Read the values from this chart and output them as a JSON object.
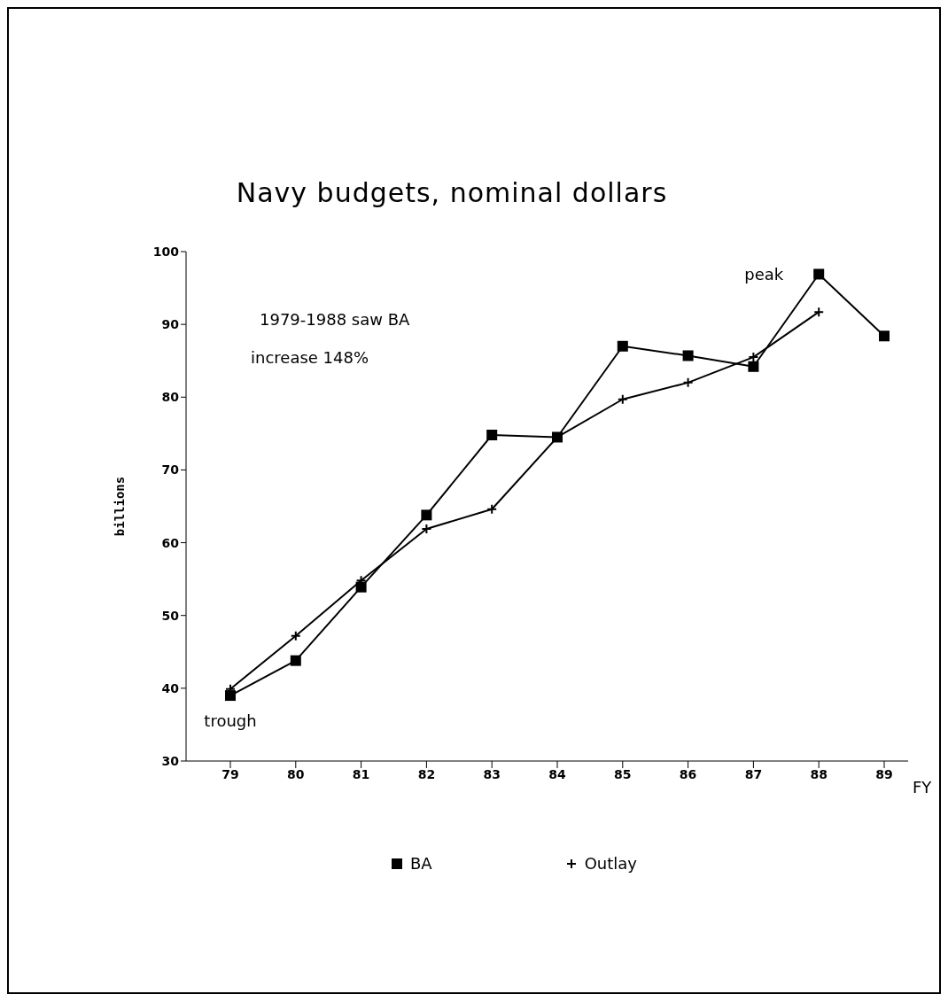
{
  "chart_data": {
    "type": "line",
    "title": "Navy budgets, nominal dollars",
    "xlabel": "FY",
    "ylabel": "billions",
    "categories": [
      "79",
      "80",
      "81",
      "82",
      "83",
      "84",
      "85",
      "86",
      "87",
      "88",
      "89"
    ],
    "series": [
      {
        "name": "BA",
        "color": "#000000",
        "marker": "square",
        "values": [
          39.0,
          43.8,
          53.9,
          63.8,
          74.8,
          74.5,
          87.0,
          85.7,
          84.2,
          96.9,
          88.4
        ]
      },
      {
        "name": "Outlay",
        "color": "#000000",
        "marker": "cross",
        "values": [
          39.9,
          47.2,
          54.8,
          61.9,
          64.6,
          74.5,
          79.7,
          82.0,
          85.5,
          91.7,
          null
        ]
      }
    ],
    "ylim": [
      30,
      100
    ],
    "yticks": [
      30,
      40,
      50,
      60,
      70,
      80,
      90,
      100
    ],
    "annotations": [
      {
        "text": "trough",
        "x": "79",
        "y": 39.0
      },
      {
        "text": "peak",
        "x": "88",
        "y": 96.9
      },
      "1979-1988 saw BA",
      "increase 148%"
    ],
    "legend": "bottom",
    "grid": false,
    "line_style": "solid"
  }
}
